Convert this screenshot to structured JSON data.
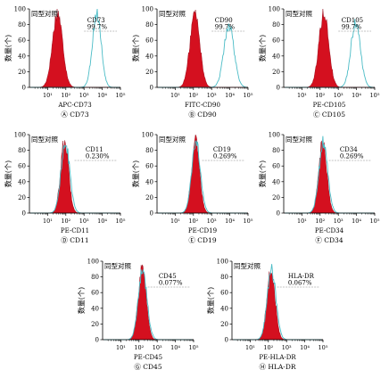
{
  "figure": {
    "iso_label": "同型对照",
    "ylabel": "数量(个)"
  },
  "colors": {
    "isotype_fill": "#d4101f",
    "isotype_stroke": "#8a0010",
    "marker_line": "#4bbcc6",
    "gate_line": "#888888",
    "axis": "#000000",
    "text": "#000000"
  },
  "chart_data": [
    {
      "type": "area",
      "caption": "Ⓐ CD73",
      "xlabel": "APC-CD73",
      "ylabel": "数量(个)",
      "gate_label": "CD73",
      "gate_value": "99.7%",
      "x_scale": "log",
      "xlim": [
        1,
        100000
      ],
      "ylim": [
        0,
        100
      ],
      "yticks": [
        0,
        20,
        40,
        60,
        80,
        100
      ],
      "xticks": [
        "10¹",
        "10²",
        "10³",
        "10⁴",
        "10⁵"
      ],
      "grid": false,
      "series": [
        {
          "name": "同型对照",
          "peak_x": 35,
          "peak_y": 96,
          "spread": 0.28
        },
        {
          "peak_x": 5000,
          "peak_y": 95,
          "spread": 0.24
        }
      ]
    },
    {
      "type": "area",
      "caption": "Ⓑ CD90",
      "xlabel": "FITC-CD90",
      "ylabel": "数量(个)",
      "gate_label": "CD90",
      "gate_value": "99.7%",
      "x_scale": "log",
      "xlim": [
        1,
        100000
      ],
      "ylim": [
        0,
        100
      ],
      "yticks": [
        0,
        20,
        40,
        60,
        80,
        100
      ],
      "xticks": [
        "10¹",
        "10²",
        "10³",
        "10⁴",
        "10⁵"
      ],
      "grid": false,
      "series": [
        {
          "name": "同型对照",
          "peak_x": 120,
          "peak_y": 95,
          "spread": 0.27
        },
        {
          "peak_x": 9000,
          "peak_y": 79,
          "spread": 0.28
        }
      ]
    },
    {
      "type": "area",
      "caption": "Ⓒ CD105",
      "xlabel": "PE-CD105",
      "ylabel": "数量(个)",
      "gate_label": "CD105",
      "gate_value": "99.7%",
      "x_scale": "log",
      "xlim": [
        1,
        100000
      ],
      "ylim": [
        0,
        100
      ],
      "yticks": [
        0,
        20,
        40,
        60,
        80,
        100
      ],
      "xticks": [
        "10¹",
        "10²",
        "10³",
        "10⁴",
        "10⁵"
      ],
      "grid": false,
      "series": [
        {
          "name": "同型对照",
          "peak_x": 160,
          "peak_y": 95,
          "spread": 0.27
        },
        {
          "peak_x": 9000,
          "peak_y": 84,
          "spread": 0.26
        }
      ]
    },
    {
      "type": "area",
      "caption": "Ⓓ CD11",
      "xlabel": "PE-CD11",
      "ylabel": "数量(个)",
      "gate_label": "CD11",
      "gate_value": "0.230%",
      "x_scale": "log",
      "xlim": [
        1,
        100000
      ],
      "ylim": [
        0,
        100
      ],
      "yticks": [
        0,
        20,
        40,
        60,
        80,
        100
      ],
      "xticks": [
        "10¹",
        "10²",
        "10³",
        "10⁴",
        "10⁵"
      ],
      "grid": false,
      "series": [
        {
          "name": "同型对照",
          "peak_x": 85,
          "peak_y": 92,
          "spread": 0.22
        },
        {
          "peak_x": 95,
          "peak_y": 90,
          "spread": 0.24
        }
      ]
    },
    {
      "type": "area",
      "caption": "Ⓔ CD19",
      "xlabel": "PE-CD19",
      "ylabel": "数量(个)",
      "gate_label": "CD19",
      "gate_value": "0.269%",
      "x_scale": "log",
      "xlim": [
        1,
        100000
      ],
      "ylim": [
        0,
        100
      ],
      "yticks": [
        0,
        20,
        40,
        60,
        80,
        100
      ],
      "xticks": [
        "10¹",
        "10²",
        "10³",
        "10⁴",
        "10⁵"
      ],
      "grid": false,
      "series": [
        {
          "name": "同型对照",
          "peak_x": 130,
          "peak_y": 92,
          "spread": 0.22
        },
        {
          "peak_x": 140,
          "peak_y": 89,
          "spread": 0.24
        }
      ]
    },
    {
      "type": "area",
      "caption": "Ⓕ CD34",
      "xlabel": "PE-CD34",
      "ylabel": "数量(个)",
      "gate_label": "CD34",
      "gate_value": "0.269%",
      "x_scale": "log",
      "xlim": [
        1,
        100000
      ],
      "ylim": [
        0,
        100
      ],
      "yticks": [
        0,
        20,
        40,
        60,
        80,
        100
      ],
      "xticks": [
        "10¹",
        "10²",
        "10³",
        "10⁴",
        "10⁵"
      ],
      "grid": false,
      "series": [
        {
          "name": "同型对照",
          "peak_x": 140,
          "peak_y": 92,
          "spread": 0.22
        },
        {
          "peak_x": 150,
          "peak_y": 90,
          "spread": 0.24
        }
      ]
    },
    {
      "type": "area",
      "caption": "Ⓖ CD45",
      "xlabel": "PE-CD45",
      "ylabel": "数量(个)",
      "gate_label": "CD45",
      "gate_value": "0.077%",
      "x_scale": "log",
      "xlim": [
        1,
        100000
      ],
      "ylim": [
        0,
        100
      ],
      "yticks": [
        0,
        20,
        40,
        60,
        80,
        100
      ],
      "xticks": [
        "10¹",
        "10²",
        "10³",
        "10⁴",
        "10⁵"
      ],
      "grid": false,
      "series": [
        {
          "name": "同型对照",
          "peak_x": 150,
          "peak_y": 90,
          "spread": 0.22
        },
        {
          "peak_x": 160,
          "peak_y": 88,
          "spread": 0.24
        }
      ]
    },
    {
      "type": "area",
      "caption": "Ⓗ HLA-DR",
      "xlabel": "PE-HLA-DR",
      "ylabel": "数量(个)",
      "gate_label": "HLA-DR",
      "gate_value": "0.067%",
      "x_scale": "log",
      "xlim": [
        1,
        100000
      ],
      "ylim": [
        0,
        100
      ],
      "yticks": [
        0,
        20,
        40,
        60,
        80,
        100
      ],
      "xticks": [
        "10¹",
        "10²",
        "10³",
        "10⁴",
        "10⁵"
      ],
      "grid": false,
      "series": [
        {
          "name": "同型对照",
          "peak_x": 140,
          "peak_y": 90,
          "spread": 0.22
        },
        {
          "peak_x": 150,
          "peak_y": 88,
          "spread": 0.24
        }
      ]
    }
  ]
}
